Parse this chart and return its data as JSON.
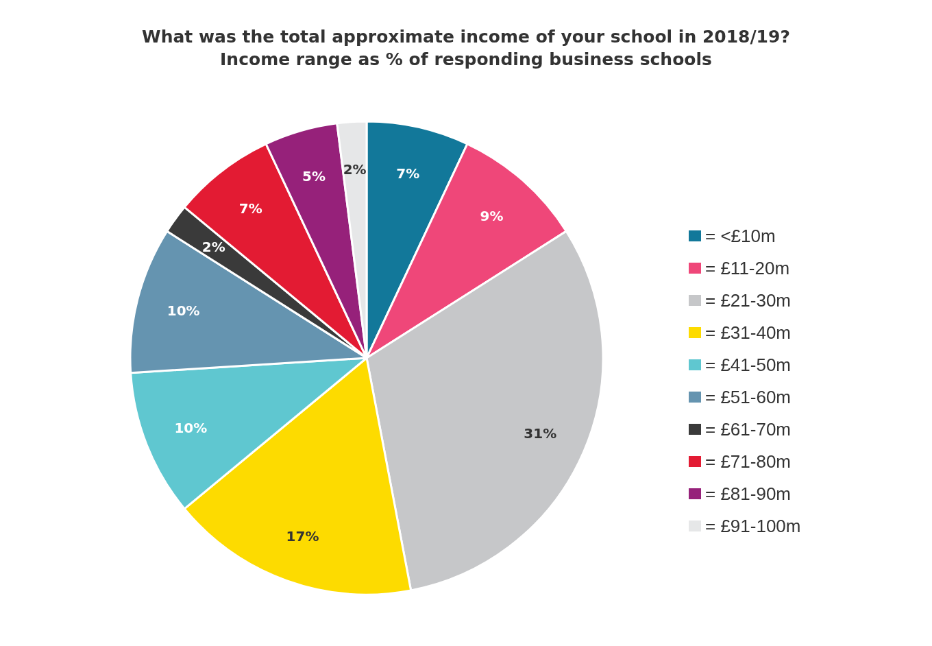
{
  "chart_data": {
    "type": "pie",
    "title": "What was the total approximate income of your school in 2018/19?",
    "subtitle": "Income range as % of responding business schools",
    "categories": [
      "= <£10m",
      "= £11-20m",
      "= £21-30m",
      "= £31-40m",
      "= £41-50m",
      "= £51-60m",
      "= £61-70m",
      "= £71-80m",
      "= £81-90m",
      "= £91-100m"
    ],
    "values": [
      7,
      9,
      31,
      17,
      10,
      10,
      2,
      7,
      5,
      2
    ],
    "value_labels": [
      "7%",
      "9%",
      "31%",
      "17%",
      "10%",
      "10%",
      "2%",
      "7%",
      "5%",
      "2%"
    ],
    "colors": [
      "#12789a",
      "#ef4779",
      "#c6c7c9",
      "#fddb00",
      "#5fc7d0",
      "#6594b0",
      "#3a3a3a",
      "#e31b33",
      "#96217a",
      "#e6e7e8"
    ],
    "legend": "right"
  }
}
